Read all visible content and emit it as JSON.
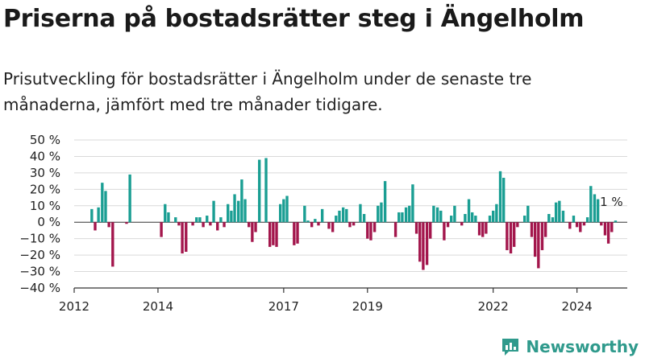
{
  "title": "Priserna på bostadsrätter steg i Ängelholm",
  "subtitle": "Prisutveckling för bostadsrätter i Ängelholm under de senaste tre månaderna, jämfört med tre månader tidigare.",
  "brand": "Newsworthy",
  "colors": {
    "positive": "#1a9e93",
    "negative": "#a3164c",
    "grid": "#d9d9d9",
    "axis": "#333333"
  },
  "chart_data": {
    "type": "bar",
    "title": "",
    "xlabel": "",
    "ylabel": "",
    "ylim": [
      -40,
      50
    ],
    "yticks": [
      -40,
      -30,
      -20,
      -10,
      0,
      10,
      20,
      30,
      40,
      50
    ],
    "ytick_labels": [
      "−40 %",
      "−30 %",
      "−20 %",
      "−10 %",
      "0 %",
      "10 %",
      "20 %",
      "30 %",
      "40 %",
      "50 %"
    ],
    "xlim": [
      2012.0,
      2025.2
    ],
    "xticks": [
      "2012",
      "2014",
      "2017",
      "2019",
      "2022",
      "2024"
    ],
    "xtick_positions": [
      2012.0,
      2014.0,
      2017.0,
      2019.0,
      2022.0,
      2024.0
    ],
    "grid": true,
    "annotation": {
      "text": "1 %",
      "x": 2024.9,
      "y": 1
    },
    "series": [
      {
        "x": [
          2012.42,
          2012.5,
          2012.58,
          2012.67,
          2012.75,
          2012.83,
          2012.92,
          2013.0,
          2013.08,
          2013.17,
          2013.25,
          2013.33,
          2013.42,
          2013.5,
          2013.58,
          2013.67,
          2013.75,
          2013.83,
          2013.92,
          2014.0,
          2014.08,
          2014.17,
          2014.25,
          2014.33,
          2014.42,
          2014.5,
          2014.58,
          2014.67,
          2014.75,
          2014.83,
          2014.92,
          2015.0,
          2015.08,
          2015.17,
          2015.25,
          2015.33,
          2015.42,
          2015.5,
          2015.58,
          2015.67,
          2015.75,
          2015.83,
          2015.92,
          2016.0,
          2016.08,
          2016.17,
          2016.25,
          2016.33,
          2016.42,
          2016.5,
          2016.58,
          2016.67,
          2016.75,
          2016.83,
          2016.92,
          2017.0,
          2017.08,
          2017.17,
          2017.25,
          2017.33,
          2017.42,
          2017.5,
          2017.58,
          2017.67,
          2017.75,
          2017.83,
          2017.92,
          2018.0,
          2018.08,
          2018.17,
          2018.25,
          2018.33,
          2018.42,
          2018.5,
          2018.58,
          2018.67,
          2018.75,
          2018.83,
          2018.92,
          2019.0,
          2019.08,
          2019.17,
          2019.25,
          2019.33,
          2019.42,
          2019.5,
          2019.58,
          2019.67,
          2019.75,
          2019.83,
          2019.92,
          2020.0,
          2020.08,
          2020.17,
          2020.25,
          2020.33,
          2020.42,
          2020.5,
          2020.58,
          2020.67,
          2020.75,
          2020.83,
          2020.92,
          2021.0,
          2021.08,
          2021.17,
          2021.25,
          2021.33,
          2021.42,
          2021.5,
          2021.58,
          2021.67,
          2021.75,
          2021.83,
          2021.92,
          2022.0,
          2022.08,
          2022.17,
          2022.25,
          2022.33,
          2022.42,
          2022.5,
          2022.58,
          2022.67,
          2022.75,
          2022.83,
          2022.92,
          2023.0,
          2023.08,
          2023.17,
          2023.25,
          2023.33,
          2023.42,
          2023.5,
          2023.58,
          2023.67,
          2023.75,
          2023.83,
          2023.92,
          2024.0,
          2024.08,
          2024.17,
          2024.25,
          2024.33,
          2024.42,
          2024.5,
          2024.58,
          2024.67,
          2024.75,
          2024.83,
          2024.92
        ],
        "values": [
          8,
          -5,
          9,
          24,
          19,
          -3,
          -27,
          0,
          0,
          0,
          -1,
          29,
          0,
          0,
          0,
          0,
          0,
          0,
          0,
          0,
          -9,
          11,
          6,
          0,
          3,
          -2,
          -19,
          -18,
          0,
          -2,
          3,
          3,
          -3,
          4,
          -2,
          13,
          -5,
          3,
          -3,
          11,
          7,
          17,
          13,
          26,
          14,
          -3,
          -12,
          -6,
          38,
          0,
          39,
          -15,
          -14,
          -15,
          11,
          14,
          16,
          0,
          -14,
          -13,
          0,
          10,
          1,
          -3,
          2,
          -2,
          8,
          0,
          -4,
          -6,
          4,
          7,
          9,
          8,
          -3,
          -2,
          0,
          11,
          5,
          -10,
          -11,
          -6,
          10,
          12,
          25,
          0,
          0,
          -9,
          6,
          6,
          9,
          10,
          23,
          -7,
          -24,
          -29,
          -26,
          -10,
          10,
          9,
          7,
          -11,
          -3,
          4,
          10,
          0,
          -2,
          5,
          14,
          6,
          4,
          -8,
          -9,
          -7,
          4,
          7,
          11,
          31,
          27,
          -17,
          -19,
          -15,
          -3,
          0,
          4,
          10,
          -9,
          -21,
          -28,
          -17,
          -9,
          5,
          3,
          12,
          13,
          7,
          0,
          -4,
          4,
          -3,
          -6,
          -2,
          3,
          22,
          17,
          14,
          -2,
          -8,
          -13,
          -6,
          1
        ]
      }
    ]
  }
}
